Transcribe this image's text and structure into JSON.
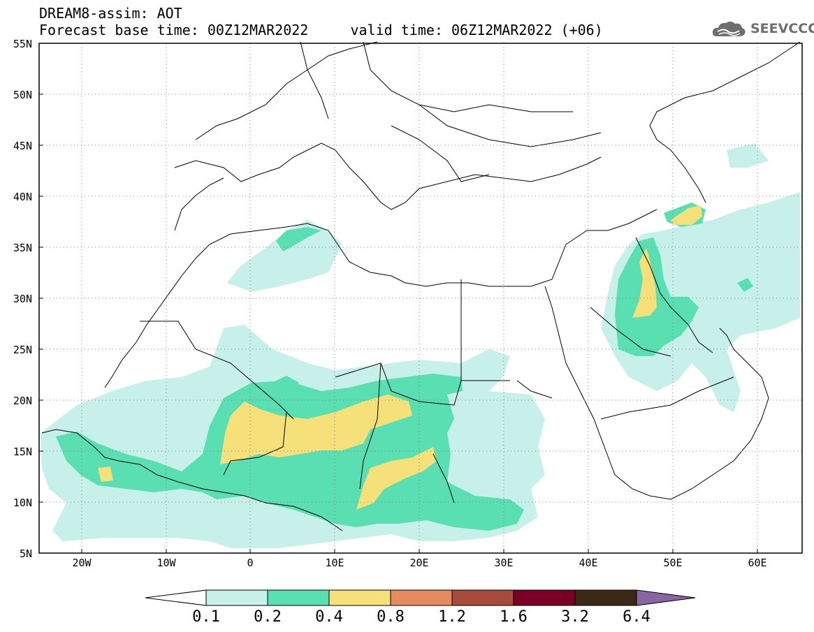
{
  "header": {
    "title_line1": "DREAM8-assim: AOT",
    "title_line2": "Forecast base time: 00Z12MAR2022     valid time: 06Z12MAR2022 (+06)"
  },
  "logo": {
    "text": "SEEVCCC",
    "icon": "cloud-logo-icon"
  },
  "map": {
    "lat_labels": [
      "55N",
      "50N",
      "45N",
      "40N",
      "35N",
      "30N",
      "25N",
      "20N",
      "15N",
      "10N",
      "5N"
    ],
    "lon_labels": [
      "20W",
      "10W",
      "0",
      "10E",
      "20E",
      "30E",
      "40E",
      "50E",
      "60E"
    ],
    "extent": {
      "lon_min": -25,
      "lon_max": 65,
      "lat_min": 5,
      "lat_max": 55
    }
  },
  "colorbar": {
    "labels": [
      "0.1",
      "0.2",
      "0.4",
      "0.8",
      "1.2",
      "1.6",
      "3.2",
      "6.4"
    ],
    "colors": [
      "#ffffff",
      "#c8f0ea",
      "#5adfb2",
      "#f5e07a",
      "#e88a60",
      "#a84a3c",
      "#7a0025",
      "#3a2a15",
      "#8a65a5"
    ]
  }
}
